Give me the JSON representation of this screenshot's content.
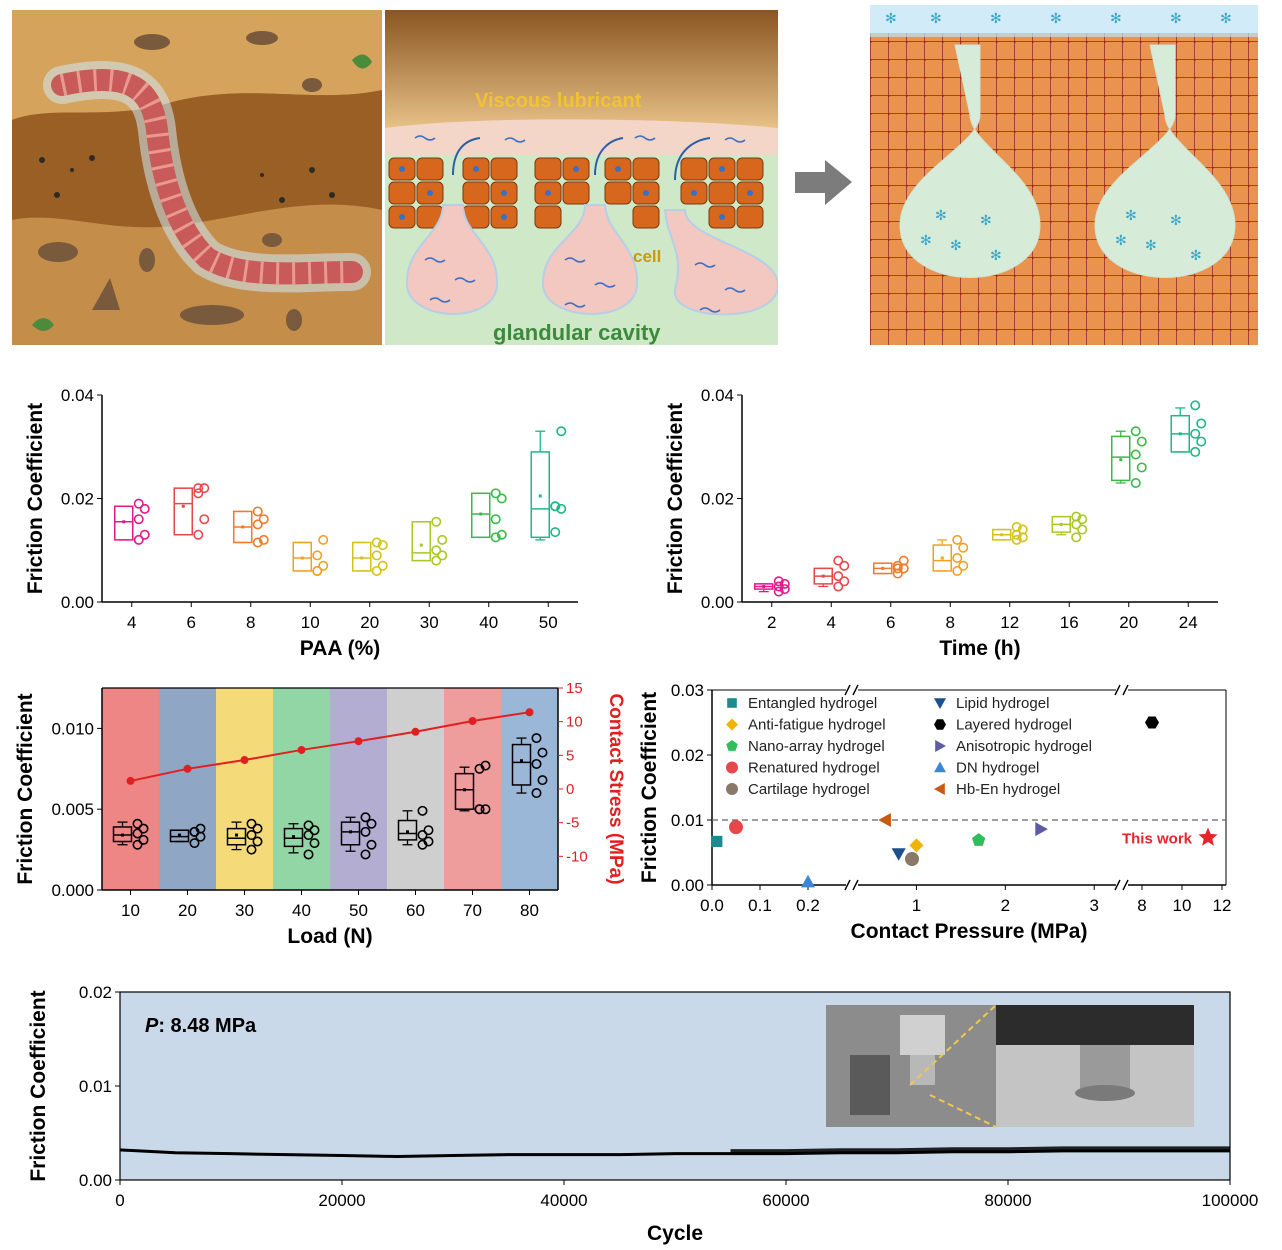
{
  "illustration": {
    "panel2_label_lubricant": "Viscous lubricant",
    "panel2_label_cell": "cell",
    "panel2_label_cavity": "glandular cavity"
  },
  "chart_data": [
    {
      "id": "paa",
      "type": "box",
      "xlabel": "PAA (%)",
      "ylabel": "Friction Coefficient",
      "ylim": [
        0,
        0.04
      ],
      "yticks": [
        "0.00",
        "0.02",
        "0.04"
      ],
      "categories": [
        "4",
        "6",
        "8",
        "10",
        "20",
        "30",
        "40",
        "50"
      ],
      "colors": [
        "#e0198c",
        "#e8474a",
        "#ef7b2a",
        "#f2a021",
        "#d4c21a",
        "#a8c825",
        "#3cb84a",
        "#1db884"
      ],
      "boxes": [
        {
          "min": 0.012,
          "q1": 0.012,
          "median": 0.0155,
          "mean": 0.0155,
          "q3": 0.0185,
          "max": 0.0185,
          "points": [
            0.012,
            0.013,
            0.016,
            0.018,
            0.019
          ]
        },
        {
          "min": 0.013,
          "q1": 0.013,
          "median": 0.019,
          "mean": 0.0185,
          "q3": 0.022,
          "max": 0.022,
          "points": [
            0.013,
            0.016,
            0.021,
            0.022,
            0.022
          ]
        },
        {
          "min": 0.0115,
          "q1": 0.0115,
          "median": 0.0145,
          "mean": 0.0145,
          "q3": 0.0175,
          "max": 0.0175,
          "points": [
            0.0115,
            0.012,
            0.015,
            0.016,
            0.0175
          ]
        },
        {
          "min": 0.006,
          "q1": 0.006,
          "median": 0.0085,
          "mean": 0.0085,
          "q3": 0.0115,
          "max": 0.0115,
          "points": [
            0.006,
            0.007,
            0.009,
            0.012,
            0.006
          ]
        },
        {
          "min": 0.006,
          "q1": 0.006,
          "median": 0.0085,
          "mean": 0.0085,
          "q3": 0.0115,
          "max": 0.0115,
          "points": [
            0.006,
            0.007,
            0.009,
            0.011,
            0.0115
          ]
        },
        {
          "min": 0.008,
          "q1": 0.008,
          "median": 0.0095,
          "mean": 0.011,
          "q3": 0.0155,
          "max": 0.0155,
          "points": [
            0.008,
            0.009,
            0.01,
            0.012,
            0.0155
          ]
        },
        {
          "min": 0.0125,
          "q1": 0.0125,
          "median": 0.017,
          "mean": 0.017,
          "q3": 0.021,
          "max": 0.021,
          "points": [
            0.0125,
            0.013,
            0.016,
            0.02,
            0.021
          ]
        },
        {
          "min": 0.012,
          "q1": 0.0125,
          "median": 0.018,
          "mean": 0.0205,
          "q3": 0.029,
          "max": 0.033,
          "points": [
            0.0135,
            0.018,
            0.0185,
            0.033,
            0.0185
          ]
        }
      ]
    },
    {
      "id": "time",
      "type": "box",
      "xlabel": "Time (h)",
      "ylabel": "Friction Coefficient",
      "ylim": [
        0,
        0.04
      ],
      "yticks": [
        "0.00",
        "0.02",
        "0.04"
      ],
      "categories": [
        "2",
        "4",
        "6",
        "8",
        "12",
        "16",
        "20",
        "24"
      ],
      "colors": [
        "#e0198c",
        "#e8474a",
        "#ef7b2a",
        "#f2a021",
        "#d4c21a",
        "#a8c825",
        "#3cb84a",
        "#1db884"
      ],
      "boxes": [
        {
          "min": 0.002,
          "q1": 0.0025,
          "median": 0.003,
          "mean": 0.003,
          "q3": 0.0035,
          "max": 0.0035,
          "points": [
            0.002,
            0.0025,
            0.003,
            0.0035,
            0.004
          ]
        },
        {
          "min": 0.003,
          "q1": 0.0035,
          "median": 0.005,
          "mean": 0.005,
          "q3": 0.0065,
          "max": 0.0065,
          "points": [
            0.003,
            0.004,
            0.005,
            0.007,
            0.008
          ]
        },
        {
          "min": 0.0055,
          "q1": 0.0055,
          "median": 0.0065,
          "mean": 0.0065,
          "q3": 0.0075,
          "max": 0.0075,
          "points": [
            0.0055,
            0.0065,
            0.007,
            0.008,
            0.0065
          ]
        },
        {
          "min": 0.006,
          "q1": 0.006,
          "median": 0.008,
          "mean": 0.0085,
          "q3": 0.011,
          "max": 0.012,
          "points": [
            0.006,
            0.007,
            0.0085,
            0.0105,
            0.012
          ]
        },
        {
          "min": 0.012,
          "q1": 0.012,
          "median": 0.013,
          "mean": 0.013,
          "q3": 0.014,
          "max": 0.014,
          "points": [
            0.012,
            0.0125,
            0.013,
            0.014,
            0.0145
          ]
        },
        {
          "min": 0.013,
          "q1": 0.0135,
          "median": 0.015,
          "mean": 0.015,
          "q3": 0.0165,
          "max": 0.0165,
          "points": [
            0.0125,
            0.014,
            0.015,
            0.016,
            0.0165
          ]
        },
        {
          "min": 0.023,
          "q1": 0.0235,
          "median": 0.028,
          "mean": 0.0275,
          "q3": 0.032,
          "max": 0.033,
          "points": [
            0.023,
            0.026,
            0.0285,
            0.031,
            0.033
          ]
        },
        {
          "min": 0.029,
          "q1": 0.029,
          "median": 0.0325,
          "mean": 0.0325,
          "q3": 0.036,
          "max": 0.0375,
          "points": [
            0.029,
            0.031,
            0.0325,
            0.0345,
            0.038
          ]
        }
      ]
    },
    {
      "id": "load",
      "type": "box",
      "xlabel": "Load (N)",
      "ylabel": "Friction Coefficient",
      "y2label": "Contact Stress (MPa)",
      "ylim": [
        0,
        0.0125
      ],
      "yticks": [
        "0.000",
        "0.005",
        "0.010"
      ],
      "y2lim": [
        -15,
        15
      ],
      "y2ticks": [
        "-10",
        "-5",
        "0",
        "5",
        "10",
        "15"
      ],
      "categories": [
        "10",
        "20",
        "30",
        "40",
        "50",
        "60",
        "70",
        "80"
      ],
      "band_colors": [
        "#ef8686",
        "#8fa6c4",
        "#f5da7a",
        "#93d6a6",
        "#b3add1",
        "#cfcfcf",
        "#ef9c9c",
        "#9ab7d8"
      ],
      "boxes": [
        {
          "min": 0.0028,
          "q1": 0.003,
          "median": 0.0034,
          "mean": 0.0034,
          "q3": 0.0039,
          "max": 0.0042,
          "points": [
            0.0028,
            0.0031,
            0.0035,
            0.0038,
            0.0041
          ]
        },
        {
          "min": 0.003,
          "q1": 0.003,
          "median": 0.0033,
          "mean": 0.0034,
          "q3": 0.0037,
          "max": 0.0037,
          "points": [
            0.0029,
            0.0033,
            0.0036,
            0.0038,
            0.0036
          ]
        },
        {
          "min": 0.0025,
          "q1": 0.0028,
          "median": 0.0032,
          "mean": 0.0034,
          "q3": 0.0038,
          "max": 0.0042,
          "points": [
            0.0025,
            0.003,
            0.0034,
            0.0038,
            0.0041
          ]
        },
        {
          "min": 0.0023,
          "q1": 0.0027,
          "median": 0.0032,
          "mean": 0.0033,
          "q3": 0.0038,
          "max": 0.0041,
          "points": [
            0.0022,
            0.0029,
            0.0034,
            0.0037,
            0.004
          ]
        },
        {
          "min": 0.0024,
          "q1": 0.0028,
          "median": 0.0036,
          "mean": 0.0036,
          "q3": 0.0042,
          "max": 0.0045,
          "points": [
            0.0022,
            0.0028,
            0.0036,
            0.0041,
            0.0045
          ]
        },
        {
          "min": 0.0028,
          "q1": 0.0031,
          "median": 0.0035,
          "mean": 0.0036,
          "q3": 0.0043,
          "max": 0.0049,
          "points": [
            0.0028,
            0.003,
            0.0034,
            0.0037,
            0.0049
          ]
        },
        {
          "min": 0.0049,
          "q1": 0.005,
          "median": 0.0062,
          "mean": 0.0062,
          "q3": 0.0072,
          "max": 0.0076,
          "points": [
            0.005,
            0.005,
            0.0075,
            0.0077,
            0.005
          ]
        },
        {
          "min": 0.006,
          "q1": 0.0065,
          "median": 0.0079,
          "mean": 0.008,
          "q3": 0.009,
          "max": 0.0094,
          "points": [
            0.006,
            0.0068,
            0.0078,
            0.0085,
            0.0094
          ]
        }
      ],
      "contact_stress": [
        1.2,
        3.0,
        4.3,
        5.8,
        7.1,
        8.5,
        10.1,
        11.4
      ]
    },
    {
      "id": "pressure",
      "type": "scatter",
      "xlabel": "Contact Pressure (MPa)",
      "ylabel": "Friction Coefficient",
      "ylim": [
        0,
        0.03
      ],
      "yticks": [
        "0.00",
        "0.01",
        "0.02",
        "0.03"
      ],
      "xticks": [
        "0.0",
        "0.1",
        "0.2",
        "1",
        "2",
        "3",
        "8",
        "10",
        "12"
      ],
      "reference_line": 0.01,
      "annotation": "This work",
      "series": [
        {
          "name": "Entangled hydrogel",
          "marker": "square",
          "color": "#1b8c8c",
          "x": 0.01,
          "y": 0.0067
        },
        {
          "name": "Anti-fatigue hydrogel",
          "marker": "diamond",
          "color": "#f0b400",
          "x": 1.0,
          "y": 0.0061
        },
        {
          "name": "Nano-array hydrogel",
          "marker": "pentagon",
          "color": "#2fbf5a",
          "x": 1.7,
          "y": 0.0069
        },
        {
          "name": "Renatured hydrogel",
          "marker": "circle",
          "color": "#e8474a",
          "x": 0.05,
          "y": 0.0089
        },
        {
          "name": "Cartilage hydrogel",
          "marker": "circle",
          "color": "#8a7868",
          "x": 0.95,
          "y": 0.004
        },
        {
          "name": "Lipid hydrogel",
          "marker": "triangle-down",
          "color": "#1c4f8c",
          "x": 0.8,
          "y": 0.0048
        },
        {
          "name": "Layered hydrogel",
          "marker": "hexagon",
          "color": "#000000",
          "x": 8.5,
          "y": 0.025
        },
        {
          "name": "Anisotropic hydrogel",
          "marker": "triangle-right",
          "color": "#5c5ca6",
          "x": 2.4,
          "y": 0.0086
        },
        {
          "name": "DN hydrogel",
          "marker": "triangle-up",
          "color": "#3b87d6",
          "x": 0.2,
          "y": 0.0005
        },
        {
          "name": "Hb-En hydrogel",
          "marker": "triangle-left",
          "color": "#c85a14",
          "x": 0.65,
          "y": 0.01
        }
      ],
      "this_work": {
        "x": 11.3,
        "y": 0.0073,
        "color": "#e8242a"
      }
    },
    {
      "id": "cycle",
      "type": "line",
      "xlabel": "Cycle",
      "ylabel": "Friction Coefficient",
      "xlim": [
        0,
        100000
      ],
      "ylim": [
        0,
        0.02
      ],
      "xticks": [
        "0",
        "20000",
        "40000",
        "60000",
        "80000",
        "100000"
      ],
      "yticks": [
        "0.00",
        "0.01",
        "0.02"
      ],
      "annotation_label": "P",
      "annotation_value": ": 8.48 MPa",
      "x": [
        0,
        5000,
        10000,
        15000,
        20000,
        25000,
        30000,
        35000,
        40000,
        45000,
        50000,
        55000,
        60000,
        65000,
        70000,
        75000,
        80000,
        85000,
        90000,
        95000,
        100000
      ],
      "y": [
        0.0032,
        0.0029,
        0.0028,
        0.0027,
        0.0026,
        0.0025,
        0.0026,
        0.0027,
        0.0027,
        0.0027,
        0.0028,
        0.0028,
        0.0028,
        0.0029,
        0.0029,
        0.003,
        0.003,
        0.0031,
        0.0031,
        0.0031,
        0.0031
      ]
    }
  ]
}
